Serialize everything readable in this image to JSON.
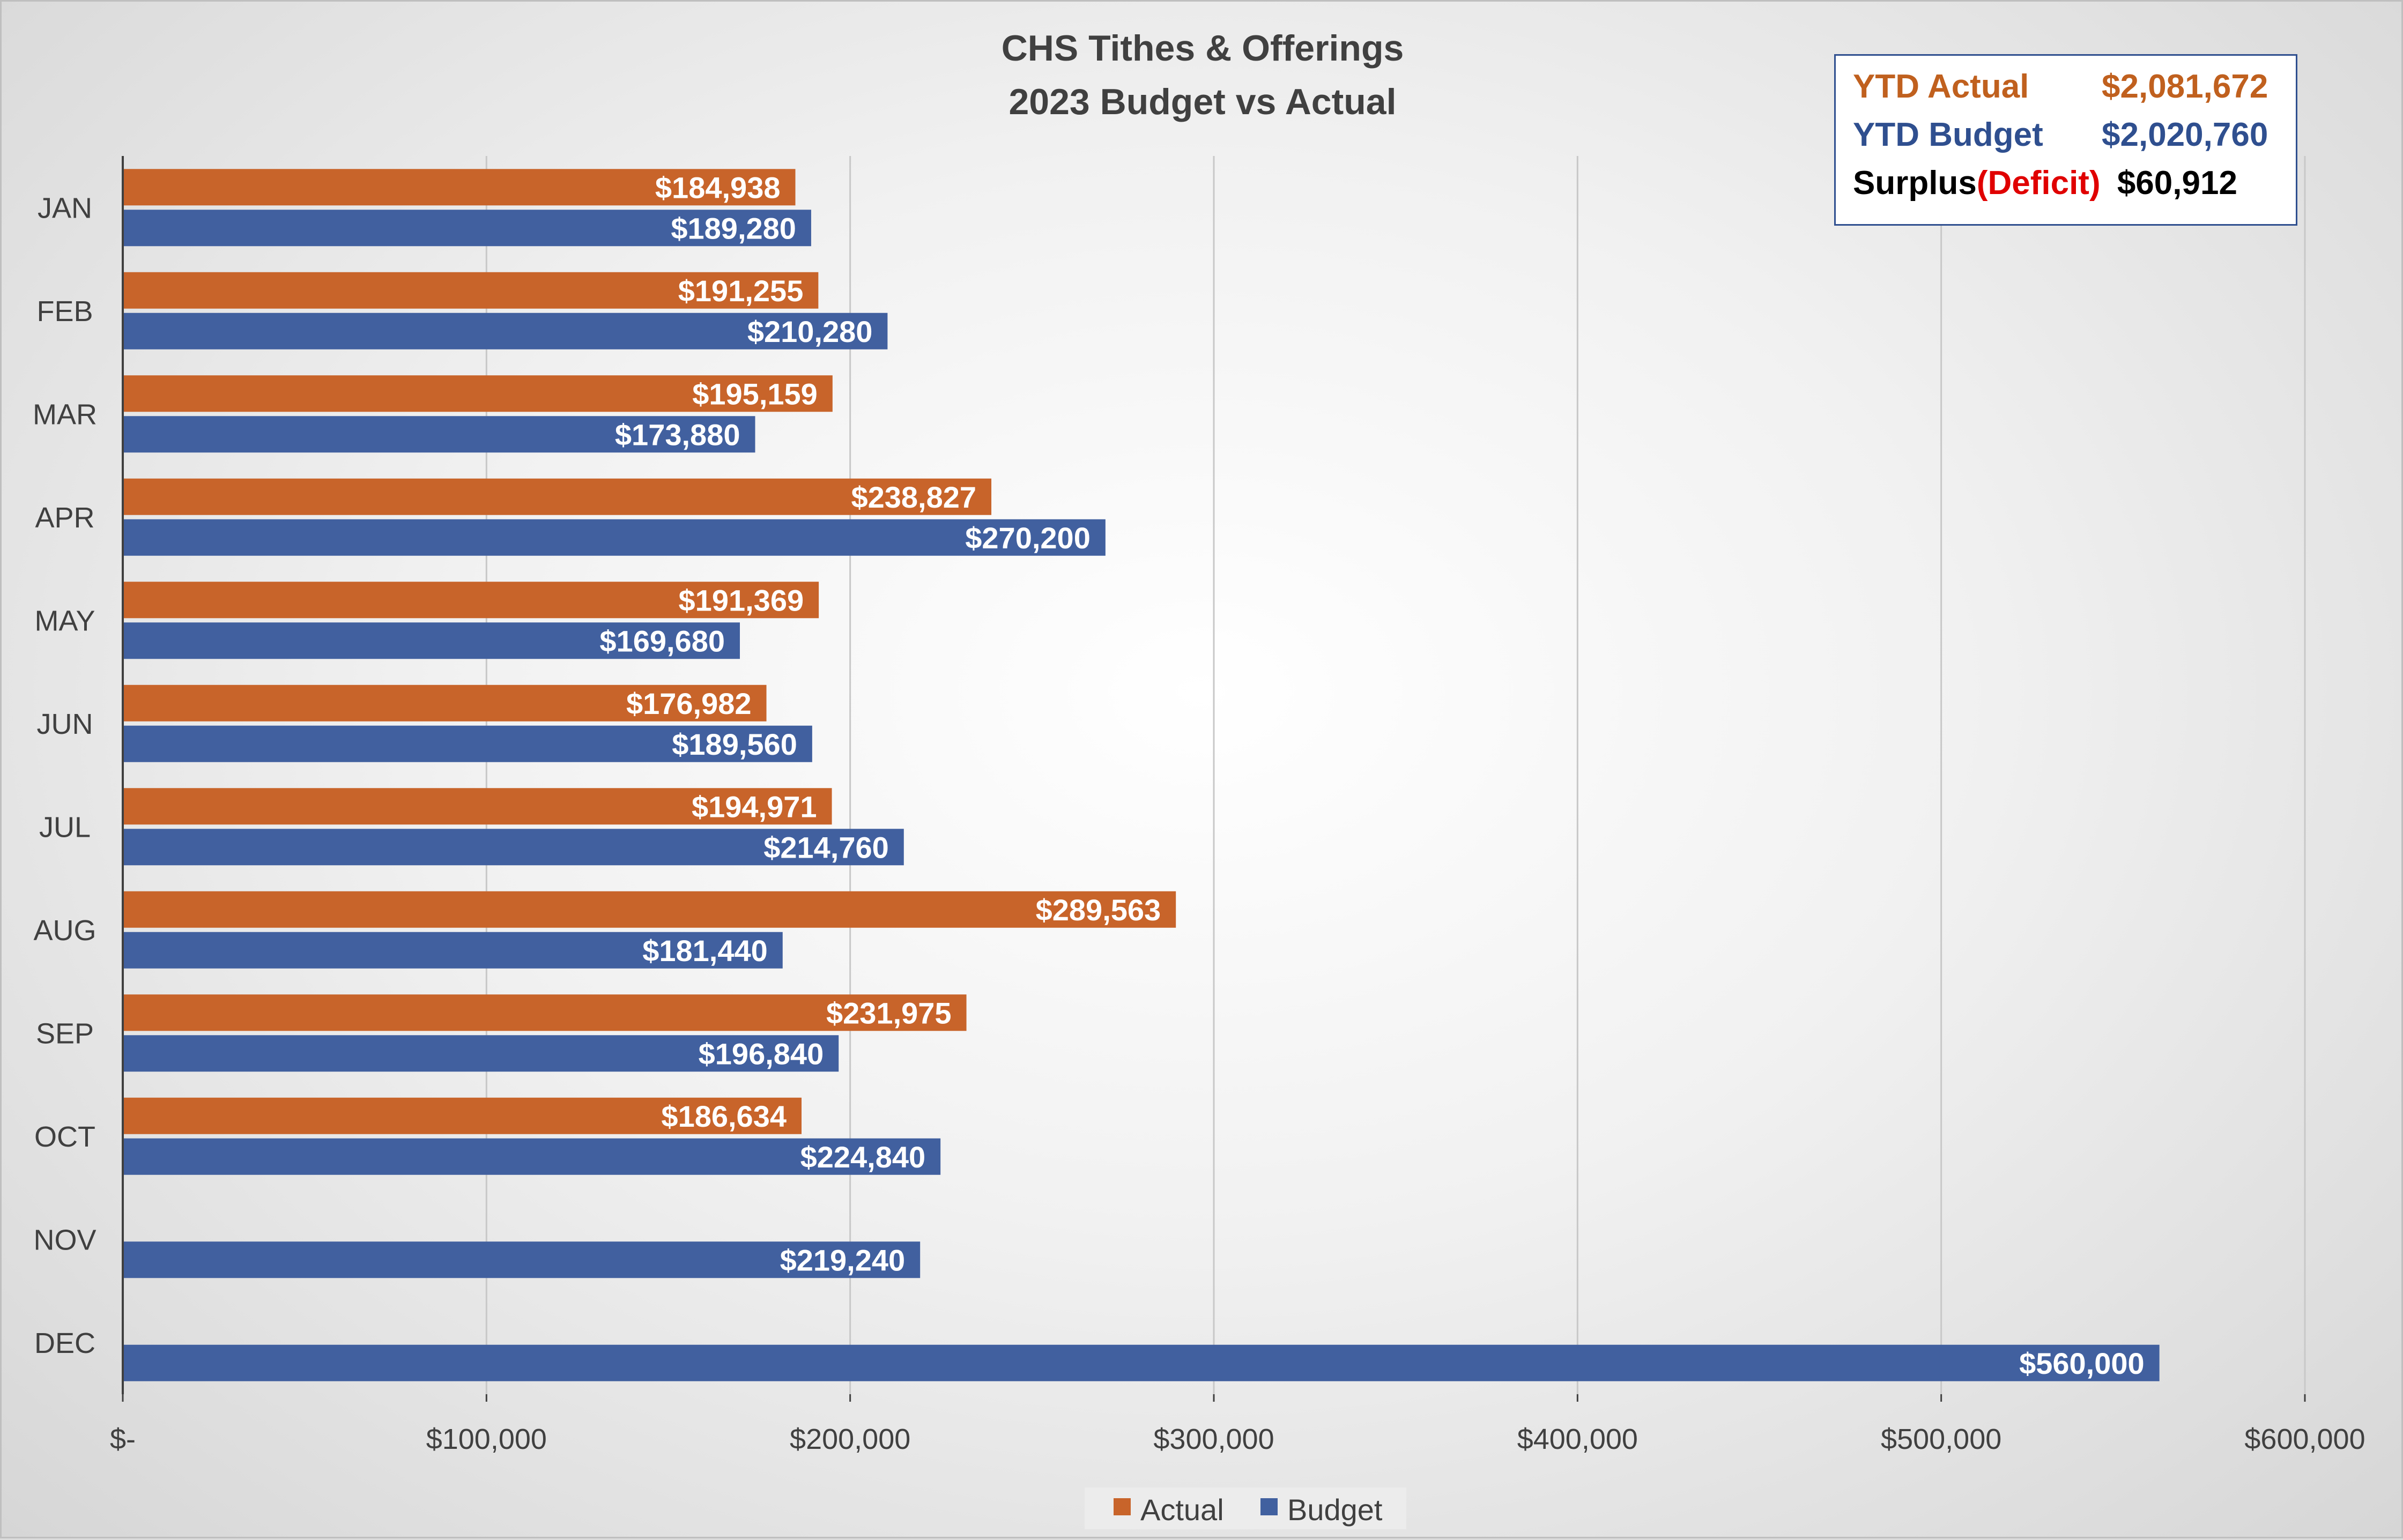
{
  "chart_data": {
    "type": "bar",
    "orientation": "horizontal",
    "title": [
      "CHS Tithes & Offerings",
      "2023 Budget vs Actual"
    ],
    "categories": [
      "JAN",
      "FEB",
      "MAR",
      "APR",
      "MAY",
      "JUN",
      "JUL",
      "AUG",
      "SEP",
      "OCT",
      "NOV",
      "DEC"
    ],
    "series": [
      {
        "name": "Actual",
        "color": "#c8642a",
        "values": [
          184938,
          191255,
          195159,
          238827,
          191369,
          176982,
          194971,
          289563,
          231975,
          186634,
          null,
          null
        ],
        "labels": [
          "$184,938",
          "$191,255",
          "$195,159",
          "$238,827",
          "$191,369",
          "$176,982",
          "$194,971",
          "$289,563",
          "$231,975",
          "$186,634",
          "",
          ""
        ]
      },
      {
        "name": "Budget",
        "color": "#41609f",
        "values": [
          189280,
          210280,
          173880,
          270200,
          169680,
          189560,
          214760,
          181440,
          196840,
          224840,
          219240,
          560000
        ],
        "labels": [
          "$189,280",
          "$210,280",
          "$173,880",
          "$270,200",
          "$169,680",
          "$189,560",
          "$214,760",
          "$181,440",
          "$196,840",
          "$224,840",
          "$219,240",
          "$560,000"
        ]
      }
    ],
    "xlim": [
      0,
      600000
    ],
    "x_ticks": [
      0,
      100000,
      200000,
      300000,
      400000,
      500000,
      600000
    ],
    "x_tick_labels": [
      "$-",
      "$100,000",
      "$200,000",
      "$300,000",
      "$400,000",
      "$500,000",
      "$600,000"
    ],
    "grid": "vertical",
    "legend_position": "bottom"
  },
  "ytd_box": {
    "actual_label": "YTD Actual",
    "actual_value": "$2,081,672",
    "budget_label": "YTD Budget",
    "budget_value": "$2,020,760",
    "surplus_label": "Surplus",
    "deficit_label": "(Deficit)",
    "surplus_value": "$60,912",
    "colors": {
      "actual": "#c0601e",
      "budget": "#2f4f8f",
      "deficit": "#e00000",
      "surplus": "#000000"
    }
  }
}
